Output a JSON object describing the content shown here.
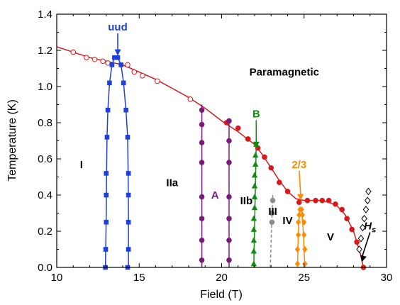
{
  "chart_data": {
    "type": "scatter",
    "xlabel": "Field (T)",
    "ylabel": "Temperature (K)",
    "xlim": [
      10,
      30
    ],
    "ylim": [
      0,
      1.4
    ],
    "x_ticks": [
      "10",
      "15",
      "20",
      "25",
      "30"
    ],
    "y_ticks": [
      "0.0",
      "0.2",
      "0.4",
      "0.6",
      "0.8",
      "1.0",
      "1.2",
      "1.4"
    ],
    "region_labels": [
      {
        "text": "Paramagnetic",
        "x": 23.8,
        "y": 1.06,
        "color": "#000000"
      },
      {
        "text": "I",
        "x": 11.5,
        "y": 0.55,
        "color": "#000000"
      },
      {
        "text": "IIa",
        "x": 17.0,
        "y": 0.45,
        "color": "#000000"
      },
      {
        "text": "A",
        "x": 19.6,
        "y": 0.38,
        "color": "#7B1B7B"
      },
      {
        "text": "IIb",
        "x": 21.5,
        "y": 0.35,
        "color": "#000000"
      },
      {
        "text": "III",
        "x": 23.1,
        "y": 0.29,
        "color": "#000000"
      },
      {
        "text": "IV",
        "x": 24.0,
        "y": 0.24,
        "color": "#000000"
      },
      {
        "text": "V",
        "x": 26.6,
        "y": 0.15,
        "color": "#000000"
      }
    ],
    "annotations": [
      {
        "text": "uud",
        "label_x": 13.7,
        "label_y": 1.31,
        "arrow_to": [
          13.7,
          1.17
        ],
        "color": "#1E3FD8"
      },
      {
        "text": "B",
        "label_x": 22.1,
        "label_y": 0.83,
        "arrow_to": [
          22.1,
          0.66
        ],
        "color": "#138A13"
      },
      {
        "text": "2/3",
        "label_x": 24.7,
        "label_y": 0.55,
        "arrow_to": [
          24.8,
          0.37
        ],
        "color": "#FF8A00"
      },
      {
        "text": "H",
        "subscript": "s",
        "label_x": 29.0,
        "label_y": 0.21,
        "arrow_to": [
          28.5,
          0.03
        ],
        "color": "#000000"
      }
    ],
    "series": [
      {
        "marker": "circle-filled",
        "color": "#D7191C",
        "x": [
          22.2,
          22.6,
          23.0,
          23.5,
          24.0,
          24.7,
          25.2,
          25.7,
          26.1,
          26.5,
          26.9,
          27.3,
          27.6,
          27.9,
          28.2,
          28.6
        ],
        "y": [
          0.66,
          0.61,
          0.55,
          0.47,
          0.42,
          0.36,
          0.37,
          0.37,
          0.37,
          0.37,
          0.35,
          0.32,
          0.27,
          0.21,
          0.14,
          0.0
        ]
      },
      {
        "marker": "circle-filled",
        "color": "#D7191C",
        "x": [
          20.3,
          21.0,
          21.6
        ],
        "y": [
          0.8,
          0.77,
          0.71
        ]
      },
      {
        "marker": "circle-open",
        "color": "#D7191C",
        "x": [
          11.0,
          11.8,
          12.3,
          12.8,
          13.1,
          14.3,
          14.7,
          15.2,
          16.1,
          18.1
        ],
        "y": [
          1.19,
          1.16,
          1.15,
          1.14,
          1.13,
          1.12,
          1.08,
          1.06,
          1.03,
          0.93
        ]
      },
      {
        "marker": "square",
        "color": "#1E3FD8",
        "x": [
          12.95,
          12.97,
          13.0,
          13.0,
          13.0,
          13.05,
          13.1,
          13.2,
          13.35,
          13.5,
          13.7,
          13.9,
          14.05,
          14.2,
          14.3,
          14.35,
          14.35,
          14.35,
          14.35,
          14.3
        ],
        "y": [
          0.0,
          0.1,
          0.25,
          0.4,
          0.52,
          0.72,
          0.87,
          1.02,
          1.12,
          1.16,
          1.16,
          1.12,
          1.02,
          0.87,
          0.72,
          0.52,
          0.4,
          0.25,
          0.1,
          0.0
        ]
      },
      {
        "marker": "circle-filled",
        "color": "#7B1B7B",
        "x": [
          18.8,
          18.8,
          18.8,
          18.8,
          18.8,
          18.8,
          18.8,
          18.8,
          20.45,
          20.45,
          20.45,
          20.45,
          20.45,
          20.45,
          20.45
        ],
        "y": [
          0.04,
          0.15,
          0.27,
          0.39,
          0.58,
          0.69,
          0.79,
          0.87,
          0.04,
          0.15,
          0.27,
          0.39,
          0.58,
          0.7,
          0.81
        ]
      },
      {
        "marker": "triangle",
        "color": "#138A13",
        "x": [
          21.95,
          21.95,
          21.95,
          21.95,
          21.95,
          22.0,
          22.0,
          22.0,
          22.0,
          22.05,
          22.05,
          22.1
        ],
        "y": [
          0.02,
          0.09,
          0.15,
          0.21,
          0.27,
          0.33,
          0.39,
          0.45,
          0.51,
          0.57,
          0.62,
          0.68
        ]
      },
      {
        "marker": "circle-filled",
        "color": "#8C8C8C",
        "x": [
          23.05,
          23.05,
          23.1
        ],
        "y": [
          0.25,
          0.3,
          0.37
        ]
      },
      {
        "marker": "diamond",
        "color": "#FF8A00",
        "x": [
          24.6,
          24.6,
          24.65,
          24.65,
          24.7,
          24.75,
          24.85,
          24.9,
          25.0,
          25.0,
          25.05,
          25.05
        ],
        "y": [
          0.02,
          0.1,
          0.18,
          0.25,
          0.29,
          0.32,
          0.32,
          0.29,
          0.25,
          0.18,
          0.1,
          0.02
        ]
      },
      {
        "marker": "diamond-open",
        "color": "#000000",
        "x": [
          28.35,
          28.45,
          28.55,
          28.65,
          28.75,
          28.85,
          28.9
        ],
        "y": [
          0.1,
          0.16,
          0.22,
          0.27,
          0.32,
          0.37,
          0.42
        ]
      }
    ],
    "curves": [
      {
        "color": "#D7191C",
        "style": "solid",
        "x": [
          10.0,
          11.0,
          12.0,
          13.0,
          14.0,
          15.0,
          16.0,
          17.0,
          18.0,
          19.0,
          20.0,
          21.0,
          22.0,
          22.5,
          23.0,
          23.5,
          24.0,
          24.5,
          25.0,
          25.5,
          26.0,
          26.5,
          27.0,
          27.5,
          28.0,
          28.4,
          28.6
        ],
        "y": [
          1.22,
          1.19,
          1.16,
          1.14,
          1.12,
          1.08,
          1.04,
          0.99,
          0.94,
          0.88,
          0.81,
          0.75,
          0.68,
          0.62,
          0.55,
          0.48,
          0.42,
          0.38,
          0.37,
          0.37,
          0.37,
          0.36,
          0.34,
          0.29,
          0.2,
          0.08,
          0.0
        ]
      },
      {
        "color": "#1E3FD8",
        "style": "solid",
        "x": [
          12.95,
          12.97,
          13.0,
          13.02,
          13.05,
          13.1,
          13.2,
          13.35,
          13.5,
          13.7,
          13.9,
          14.05,
          14.2,
          14.3,
          14.33,
          14.35,
          14.35
        ],
        "y": [
          0.0,
          0.1,
          0.3,
          0.5,
          0.72,
          0.87,
          1.02,
          1.12,
          1.16,
          1.16,
          1.12,
          1.02,
          0.87,
          0.72,
          0.5,
          0.3,
          0.0
        ]
      },
      {
        "color": "#7B1B7B",
        "style": "solid",
        "x": [
          18.8,
          18.8
        ],
        "y": [
          0.0,
          0.9
        ]
      },
      {
        "color": "#7B1B7B",
        "style": "solid",
        "x": [
          20.45,
          20.45
        ],
        "y": [
          0.0,
          0.82
        ]
      },
      {
        "color": "#138A13",
        "style": "solid",
        "x": [
          21.95,
          22.1
        ],
        "y": [
          0.0,
          0.68
        ]
      },
      {
        "color": "#8C8C8C",
        "style": "dashed",
        "x": [
          22.95,
          23.1
        ],
        "y": [
          0.0,
          0.4
        ]
      },
      {
        "color": "#FF8A00",
        "style": "solid",
        "x": [
          24.6,
          24.65,
          24.75,
          24.85,
          24.95,
          25.05
        ],
        "y": [
          0.0,
          0.2,
          0.32,
          0.32,
          0.2,
          0.0
        ]
      }
    ]
  }
}
